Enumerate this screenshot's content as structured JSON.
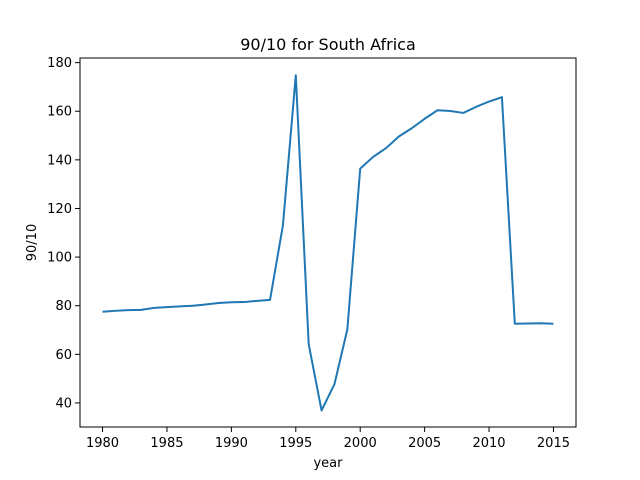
{
  "chart_data": {
    "type": "line",
    "title": "90/10 for South Africa",
    "xlabel": "year",
    "ylabel": "90/10",
    "xlim": [
      1978.25,
      2016.75
    ],
    "ylim": [
      30.1,
      181.9
    ],
    "xticks": [
      1980,
      1985,
      1990,
      1995,
      2000,
      2005,
      2010,
      2015
    ],
    "yticks": [
      40,
      60,
      80,
      100,
      120,
      140,
      160,
      180
    ],
    "grid": false,
    "series": [
      {
        "color": "#1f77b4",
        "x": [
          1980,
          1981,
          1982,
          1983,
          1984,
          1985,
          1986,
          1987,
          1988,
          1989,
          1990,
          1991,
          1992,
          1993,
          1994,
          1995,
          1996,
          1997,
          1998,
          1999,
          2000,
          2001,
          2002,
          2003,
          2004,
          2005,
          2006,
          2007,
          2008,
          2009,
          2010,
          2011,
          2012,
          2013,
          2014,
          2015
        ],
        "values": [
          77.5,
          77.9,
          78.2,
          78.3,
          79.1,
          79.4,
          79.7,
          80.0,
          80.5,
          81.1,
          81.4,
          81.5,
          82.0,
          82.4,
          113.0,
          174.8,
          64.2,
          36.9,
          47.7,
          70.2,
          136.4,
          141.2,
          144.8,
          149.6,
          153.0,
          156.9,
          160.4,
          160.1,
          159.3,
          161.8,
          164.0,
          165.8,
          72.6,
          72.7,
          72.8,
          72.6
        ]
      }
    ]
  }
}
